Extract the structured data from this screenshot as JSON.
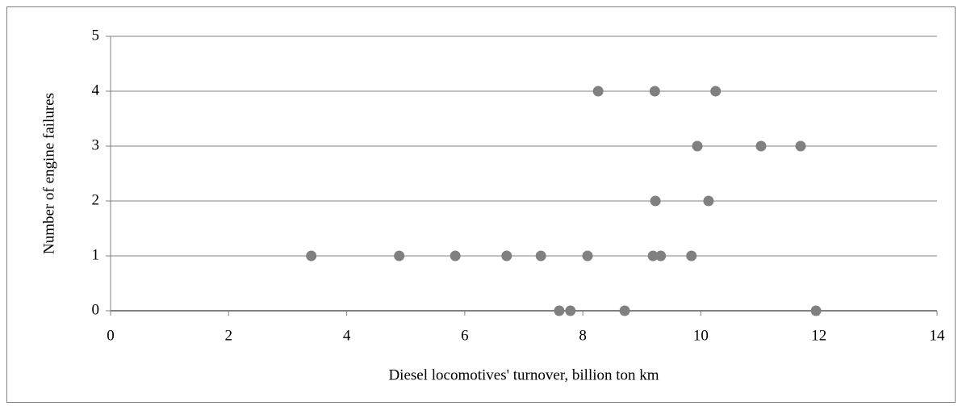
{
  "chart_data": {
    "type": "scatter",
    "xlabel": "Diesel locomotives' turnover, billion ton km",
    "ylabel": "Number of engine failures",
    "x": [
      8.26,
      9.22,
      10.25,
      9.94,
      11.02,
      11.69,
      9.23,
      10.13,
      3.4,
      4.89,
      5.84,
      6.71,
      7.29,
      8.08,
      9.19,
      9.32,
      9.84,
      7.6,
      7.79,
      8.71,
      11.95
    ],
    "values": [
      4,
      4,
      4,
      3,
      3,
      3,
      2,
      2,
      1,
      1,
      1,
      1,
      1,
      1,
      1,
      1,
      1,
      0,
      0,
      0,
      0
    ],
    "color": "#808080",
    "xlim": [
      0,
      14
    ],
    "xticks": [
      0,
      2,
      4,
      6,
      8,
      10,
      12,
      14
    ],
    "ylim": [
      0,
      5
    ],
    "yticks": [
      0,
      1,
      2,
      3,
      4,
      5
    ],
    "grid": true
  }
}
